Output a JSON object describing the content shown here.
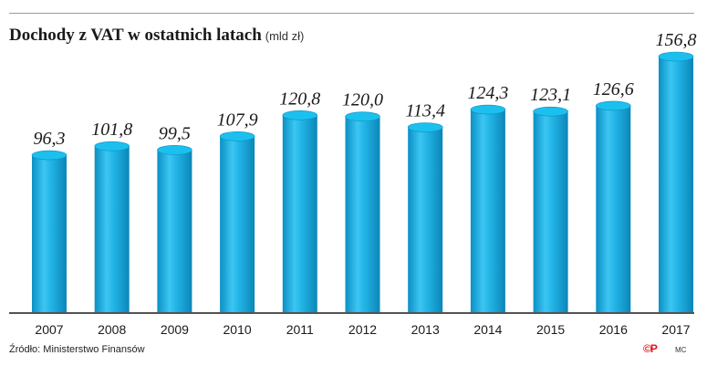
{
  "header": {
    "title": "Dochody z VAT w ostatnich latach",
    "unit": "(mld zł)"
  },
  "chart_data": {
    "type": "bar",
    "title": "Dochody z VAT w ostatnich latach",
    "ylabel": "mld zł",
    "xlabel": "",
    "categories": [
      "2007",
      "2008",
      "2009",
      "2010",
      "2011",
      "2012",
      "2013",
      "2014",
      "2015",
      "2016",
      "2017"
    ],
    "values": [
      96.3,
      101.8,
      99.5,
      107.9,
      120.8,
      120.0,
      113.4,
      124.3,
      123.1,
      126.6,
      156.8
    ],
    "value_labels": [
      "96,3",
      "101,8",
      "99,5",
      "107,9",
      "120,8",
      "120,0",
      "113,4",
      "124,3",
      "123,1",
      "126,6",
      "156,8"
    ],
    "ylim": [
      0,
      156.8
    ],
    "grid": false,
    "bar_color": "#1fb3e3"
  },
  "footer": {
    "source": "Źródło: Ministerstwo Finansów",
    "logo": "©P",
    "author": "MC"
  }
}
